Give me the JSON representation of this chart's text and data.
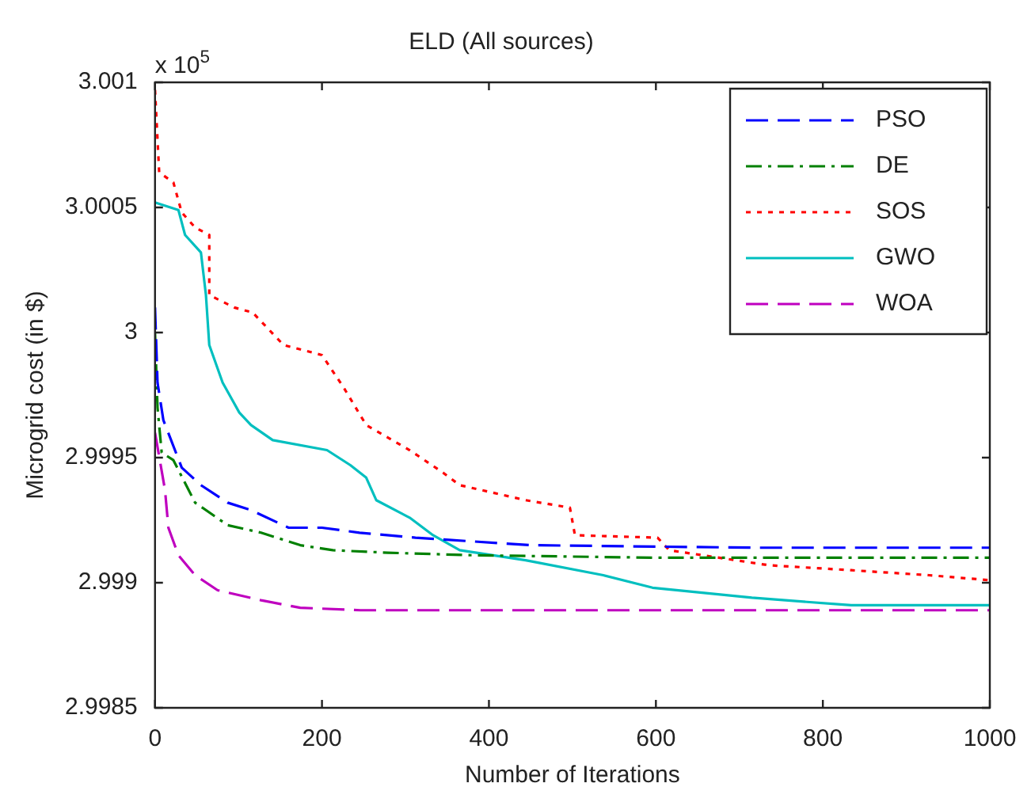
{
  "chart_data": {
    "type": "line",
    "title": "ELD (All sources)",
    "xlabel": "Number of Iterations",
    "ylabel": "Microgrid cost (in $)",
    "annotations": [
      "x 10$^{5}$"
    ],
    "xlim": [
      0,
      1000
    ],
    "xticks": [
      0,
      200,
      400,
      600,
      800,
      1000
    ],
    "ylim": [
      2.9985,
      3.001
    ],
    "yticks": [
      2.9985,
      2.999,
      2.9995,
      3,
      3.0005,
      3.001
    ],
    "grid": false,
    "legend": "top right",
    "series": [
      {
        "name": "PSO",
        "color": "#0000ff",
        "line_style": "dashed",
        "x": [
          0,
          3,
          10,
          32,
          55,
          87,
          115,
          160,
          200,
          245,
          312,
          450,
          720,
          1000
        ],
        "values": [
          3.0001,
          2.9998,
          2.99965,
          2.99946,
          2.99939,
          2.99932,
          2.99929,
          2.99922,
          2.99922,
          2.9992,
          2.99918,
          2.99915,
          2.99914,
          2.99914
        ]
      },
      {
        "name": "DE",
        "color": "#008000",
        "line_style": "dashdot",
        "x": [
          0,
          3,
          8,
          22,
          48,
          87,
          127,
          174,
          213,
          279,
          378,
          600,
          1000
        ],
        "values": [
          3.0,
          2.9997,
          2.99952,
          2.99949,
          2.99932,
          2.99923,
          2.9992,
          2.99915,
          2.99913,
          2.99912,
          2.99911,
          2.9991,
          2.9991
        ]
      },
      {
        "name": "SOS",
        "color": "#ff0000",
        "line_style": "dotted",
        "x": [
          0,
          5,
          22,
          32,
          48,
          65,
          65,
          95,
          117,
          154,
          200,
          226,
          253,
          305,
          345,
          365,
          444,
          497,
          503,
          602,
          616,
          735,
          834,
          927,
          1000
        ],
        "values": [
          3.00097,
          3.00064,
          3.0006,
          3.00048,
          3.00042,
          3.00039,
          3.00015,
          3.0001,
          3.00008,
          2.99995,
          2.99991,
          2.99978,
          2.99963,
          2.99953,
          2.99944,
          2.99939,
          2.99933,
          2.9993,
          2.99919,
          2.99918,
          2.99913,
          2.99907,
          2.99905,
          2.99903,
          2.99901
        ]
      },
      {
        "name": "GWO",
        "color": "#00bfbf",
        "line_style": "solid",
        "x": [
          0,
          28,
          36,
          55,
          61,
          65,
          81,
          101,
          115,
          141,
          206,
          234,
          253,
          265,
          305,
          333,
          365,
          444,
          537,
          596,
          715,
          834,
          1000
        ],
        "values": [
          3.00052,
          3.00049,
          3.00039,
          3.00032,
          3.00015,
          2.99995,
          2.9998,
          2.99968,
          2.99963,
          2.99957,
          2.99953,
          2.99947,
          2.99942,
          2.99933,
          2.99926,
          2.99919,
          2.99913,
          2.99909,
          2.99903,
          2.99898,
          2.99894,
          2.99891,
          2.99891
        ]
      },
      {
        "name": "WOA",
        "color": "#bf00bf",
        "line_style": "dashed",
        "x": [
          0,
          12,
          16,
          28,
          48,
          75,
          127,
          174,
          246,
          1000
        ],
        "values": [
          2.9996,
          2.99937,
          2.99922,
          2.99911,
          2.99903,
          2.99897,
          2.99893,
          2.9989,
          2.99889,
          2.99889
        ]
      }
    ]
  }
}
